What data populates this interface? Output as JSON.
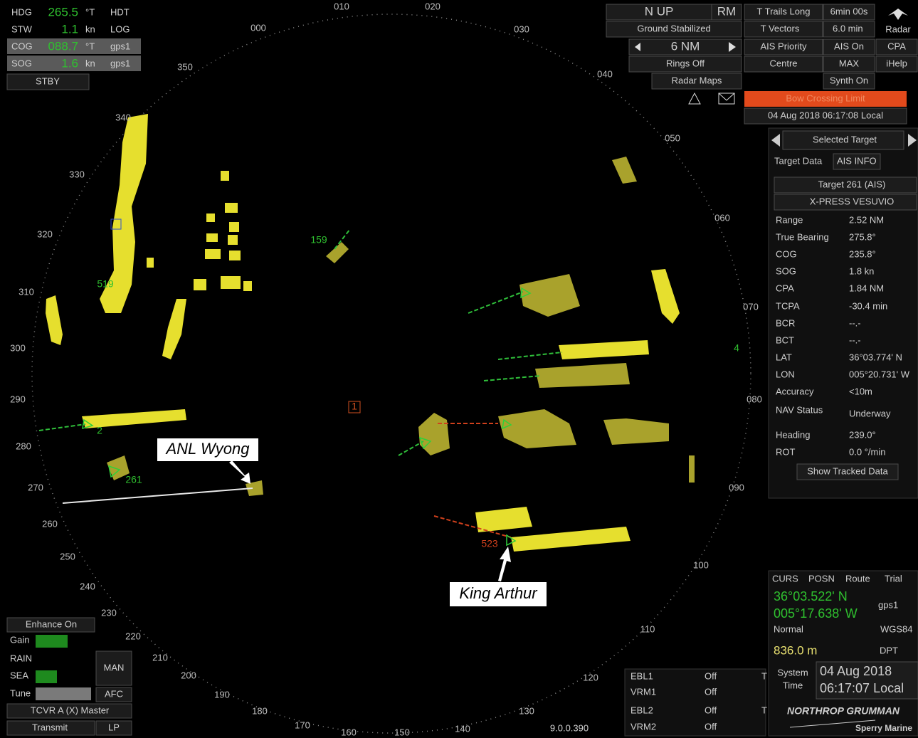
{
  "own_ship": {
    "rows": [
      [
        "HDG",
        "265.5",
        "°T",
        "HDT"
      ],
      [
        "STW",
        "1.1",
        "kn",
        "LOG"
      ],
      [
        "COG",
        "088.7",
        "°T",
        "gps1"
      ],
      [
        "SOG",
        "1.6",
        "kn",
        "gps1"
      ]
    ],
    "mode": "STBY"
  },
  "display": {
    "orientation": "N UP",
    "motion": "RM",
    "stabilization": "Ground Stabilized",
    "range": "6 NM",
    "rings": "Rings Off",
    "maps": "Radar Maps"
  },
  "settings": {
    "trails": "T Trails Long",
    "trails_time": "6min 00s",
    "radar": "Radar",
    "vectors": "T Vectors",
    "vectors_time": "6.0 min",
    "ais_priority": "AIS Priority",
    "ais": "AIS On",
    "cpa": "CPA",
    "centre": "Centre",
    "max": "MAX",
    "help": "iHelp",
    "synth": "Synth On",
    "alarm": "Bow Crossing Limit",
    "datetime": "04 Aug 2018 06:17:08 Local"
  },
  "target_panel": {
    "title": "Selected Target",
    "tabs": [
      "Target Data",
      "AIS INFO"
    ],
    "target": "Target 261 (AIS)",
    "name": "X-PRESS VESUVIO",
    "rows": [
      [
        "Range",
        "2.52 NM"
      ],
      [
        "True Bearing",
        "275.8°"
      ],
      [
        "COG",
        "235.8°"
      ],
      [
        "SOG",
        "1.8 kn"
      ],
      [
        "CPA",
        "1.84 NM"
      ],
      [
        "TCPA",
        "-30.4 min"
      ],
      [
        "BCR",
        "--.-"
      ],
      [
        "BCT",
        "--.-"
      ],
      [
        "LAT",
        "36°03.774' N"
      ],
      [
        "LON",
        "005°20.731' W"
      ],
      [
        "Accuracy",
        "<10m"
      ],
      [
        "NAV Status",
        "Underway"
      ],
      [
        "Heading",
        "239.0°"
      ],
      [
        "ROT",
        "0.0 °/min"
      ]
    ],
    "button": "Show Tracked Data"
  },
  "position_panel": {
    "tabs": [
      "CURS",
      "POSN",
      "Route",
      "Trial"
    ],
    "lat": "36°03.522' N",
    "lon": "005°17.638' W",
    "source": "gps1",
    "mode": "Normal",
    "datum": "WGS84",
    "depth": "836.0 m",
    "depth_label": "DPT",
    "time_label": [
      "System",
      "Time"
    ],
    "date": "04 Aug 2018",
    "time": "06:17:07 Local",
    "brand": "NORTHROP GRUMMAN",
    "sub_brand": "Sperry Marine"
  },
  "ebl_vrm": {
    "rows": [
      [
        "EBL1",
        "Off"
      ],
      [
        "VRM1",
        "Off"
      ],
      [
        "EBL2",
        "Off"
      ],
      [
        "VRM2",
        "Off"
      ]
    ],
    "t_marks": [
      "T",
      "T"
    ]
  },
  "version": "9.0.0.390",
  "controls": {
    "enhance": "Enhance On",
    "labels": [
      "Gain",
      "RAIN",
      "SEA",
      "Tune"
    ],
    "man": "MAN",
    "afc": "AFC",
    "transceiver": "TCVR A (X) Master",
    "transmit": "Transmit",
    "pulse": "LP"
  },
  "bearing_labels": [
    "000",
    "010",
    "020",
    "030",
    "040",
    "050",
    "060",
    "070",
    "080",
    "090",
    "100",
    "110",
    "120",
    "130",
    "140",
    "150",
    "160",
    "170",
    "180",
    "190",
    "200",
    "210",
    "220",
    "230",
    "240",
    "250",
    "260",
    "270",
    "280",
    "290",
    "300",
    "310",
    "320",
    "330",
    "340",
    "350"
  ],
  "target_labels": [
    "159",
    "519",
    "2",
    "261",
    "523",
    "1",
    "4"
  ],
  "annotations": [
    "ANL Wyong",
    "King Arthur"
  ]
}
